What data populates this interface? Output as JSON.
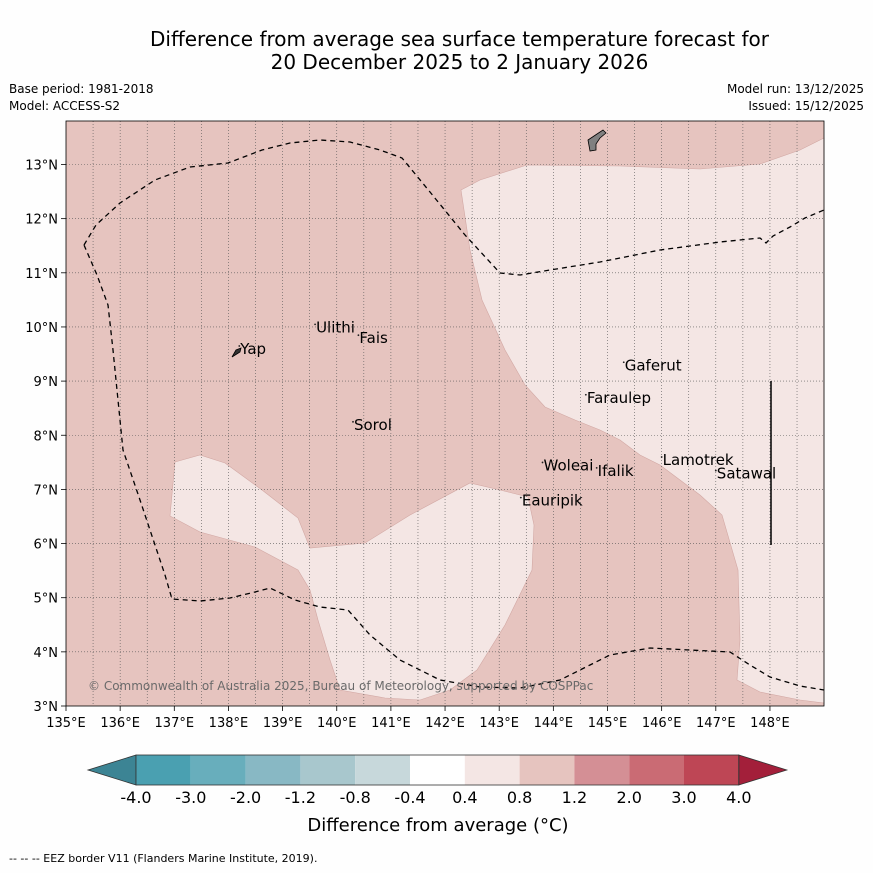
{
  "title": {
    "line1": "Difference from average sea surface temperature forecast for",
    "line2": "20 December 2025 to 2 January 2026"
  },
  "meta_left": {
    "base_period": "Base period: 1981-2018",
    "model": "Model: ACCESS-S2"
  },
  "meta_right": {
    "model_run": "Model run: 13/12/2025",
    "issued": "Issued: 15/12/2025"
  },
  "map": {
    "lon_range": [
      135,
      149
    ],
    "lat_range": [
      3,
      13.8
    ],
    "x_ticks": [
      "135°E",
      "136°E",
      "137°E",
      "138°E",
      "139°E",
      "140°E",
      "141°E",
      "142°E",
      "143°E",
      "144°E",
      "145°E",
      "146°E",
      "147°E",
      "148°E"
    ],
    "y_ticks": [
      "3°N",
      "4°N",
      "5°N",
      "6°N",
      "7°N",
      "8°N",
      "9°N",
      "10°N",
      "11°N",
      "12°N",
      "13°N"
    ],
    "background_band": "0.8 to 1.2",
    "lighter_band": "0.4 to 0.8",
    "colors": {
      "band_08_12": "#e6c4bf",
      "band_04_08": "#f4e6e4"
    },
    "places": [
      {
        "name": "Yap",
        "lon": 138.2,
        "lat": 9.5
      },
      {
        "name": "Ulithi",
        "lon": 139.6,
        "lat": 9.9
      },
      {
        "name": "Fais",
        "lon": 140.4,
        "lat": 9.7
      },
      {
        "name": "Sorol",
        "lon": 140.3,
        "lat": 8.1
      },
      {
        "name": "Gaferut",
        "lon": 145.3,
        "lat": 9.2
      },
      {
        "name": "Faraulep",
        "lon": 144.6,
        "lat": 8.6
      },
      {
        "name": "Woleai",
        "lon": 143.8,
        "lat": 7.35
      },
      {
        "name": "Ifalik",
        "lon": 144.8,
        "lat": 7.25
      },
      {
        "name": "Lamotrek",
        "lon": 146.0,
        "lat": 7.45
      },
      {
        "name": "Satawal",
        "lon": 147.0,
        "lat": 7.2
      },
      {
        "name": "Eauripik",
        "lon": 143.4,
        "lat": 6.7
      }
    ],
    "copyright": "© Commonwealth of Australia 2025, Bureau of Meteorology, supported by COSPPac"
  },
  "colorbar": {
    "colors": [
      "#3c8494",
      "#4aa0b1",
      "#68aebc",
      "#88b8c4",
      "#a8c7cd",
      "#c7d8db",
      "#ffffff",
      "#f4e6e4",
      "#e6c4bf",
      "#d48f95",
      "#ca6b74",
      "#be4655",
      "#a31f3a"
    ],
    "labels": [
      "-4.0",
      "-3.0",
      "-2.0",
      "-1.2",
      "-0.8",
      "-0.4",
      "0.4",
      "0.8",
      "1.2",
      "2.0",
      "3.0",
      "4.0"
    ],
    "title": "Difference from average (°C)"
  },
  "footer": "--  --  -- EEZ border V11 (Flanders Marine Institute, 2019)."
}
